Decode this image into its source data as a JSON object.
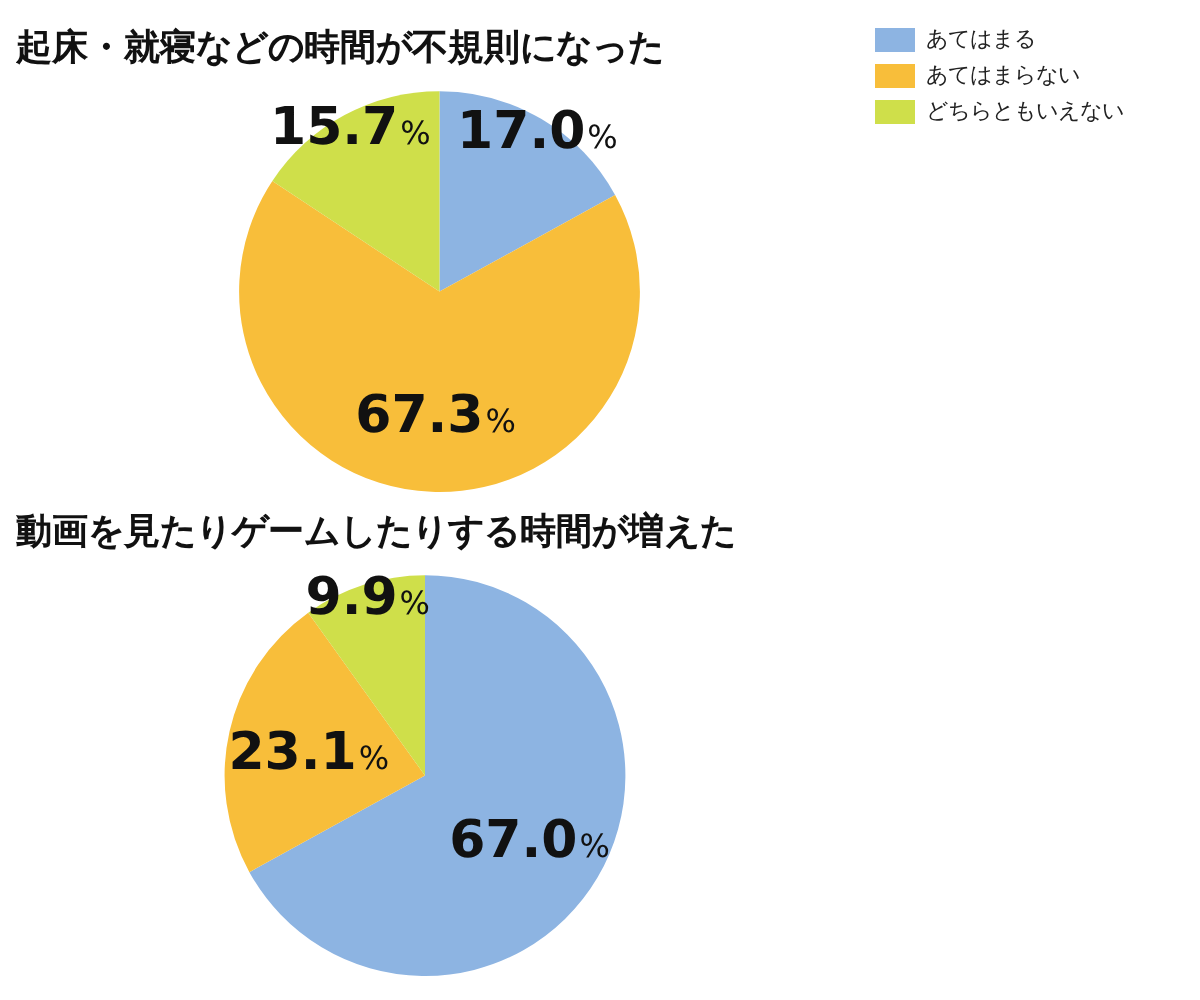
{
  "chart_data": [
    {
      "type": "pie",
      "title": "起床・就寝などの時間が不規則になった",
      "categories": [
        "あてはまる",
        "あてはまらない",
        "どちらともいえない"
      ],
      "values": [
        17.0,
        67.3,
        15.7
      ],
      "colors": [
        "#8db4e2",
        "#f8be3a",
        "#cfdf4a"
      ],
      "value_labels": [
        "17.0%",
        "67.3%",
        "15.7%"
      ],
      "legend": "top right"
    },
    {
      "type": "pie",
      "title": "動画を見たりゲームしたりする時間が増えた",
      "categories": [
        null,
        null,
        null
      ],
      "values": [
        67.0,
        23.1,
        9.9
      ],
      "colors": [
        "#8db4e2",
        "#f8be3a",
        "#cfdf4a"
      ],
      "value_labels": [
        "67.0%",
        "23.1%",
        "9.9%"
      ]
    }
  ]
}
